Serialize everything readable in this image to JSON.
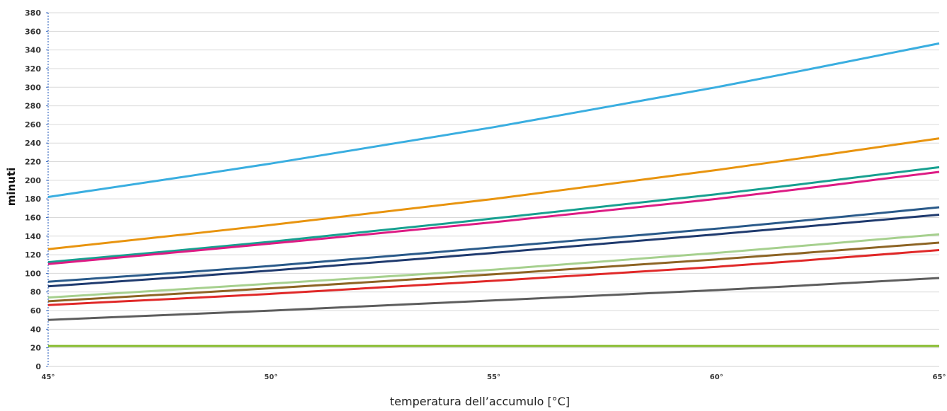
{
  "chart_data": {
    "type": "line",
    "title": "",
    "xlabel": "temperatura dell’accumulo [°C]",
    "ylabel": "minuti",
    "x": [
      45,
      50,
      55,
      60,
      65
    ],
    "x_tick_labels": [
      "45°",
      "50°",
      "55°",
      "60°",
      "65°"
    ],
    "y_ticks": [
      "0",
      "20",
      "40",
      "60",
      "80",
      "100",
      "120",
      "140",
      "160",
      "180",
      "200",
      "220",
      "240",
      "260",
      "280",
      "300",
      "320",
      "340",
      "360",
      "380"
    ],
    "ylim": [
      0,
      380
    ],
    "xlim": [
      45,
      65
    ],
    "grid": true,
    "series": [
      {
        "color": "#3aaee0",
        "values": [
          182,
          218,
          257,
          300,
          347
        ]
      },
      {
        "color": "#e8940f",
        "values": [
          126,
          152,
          180,
          211,
          245
        ]
      },
      {
        "color": "#17a090",
        "values": [
          112,
          134,
          159,
          185,
          214
        ]
      },
      {
        "color": "#dd1b84",
        "values": [
          110,
          132,
          155,
          180,
          209
        ]
      },
      {
        "color": "#2a5a8a",
        "values": [
          91,
          108,
          128,
          148,
          171
        ]
      },
      {
        "color": "#1f3a6e",
        "values": [
          86,
          103,
          122,
          142,
          163
        ]
      },
      {
        "color": "#a6d08e",
        "values": [
          74,
          89,
          104,
          122,
          142
        ]
      },
      {
        "color": "#8d6424",
        "values": [
          70,
          84,
          99,
          115,
          133
        ]
      },
      {
        "color": "#e02828",
        "values": [
          66,
          78,
          92,
          107,
          125
        ]
      },
      {
        "color": "#5d5d5d",
        "values": [
          50,
          60,
          71,
          82,
          95
        ]
      },
      {
        "color": "#86bb2e",
        "values": [
          22,
          22,
          22,
          22,
          22
        ]
      }
    ]
  }
}
